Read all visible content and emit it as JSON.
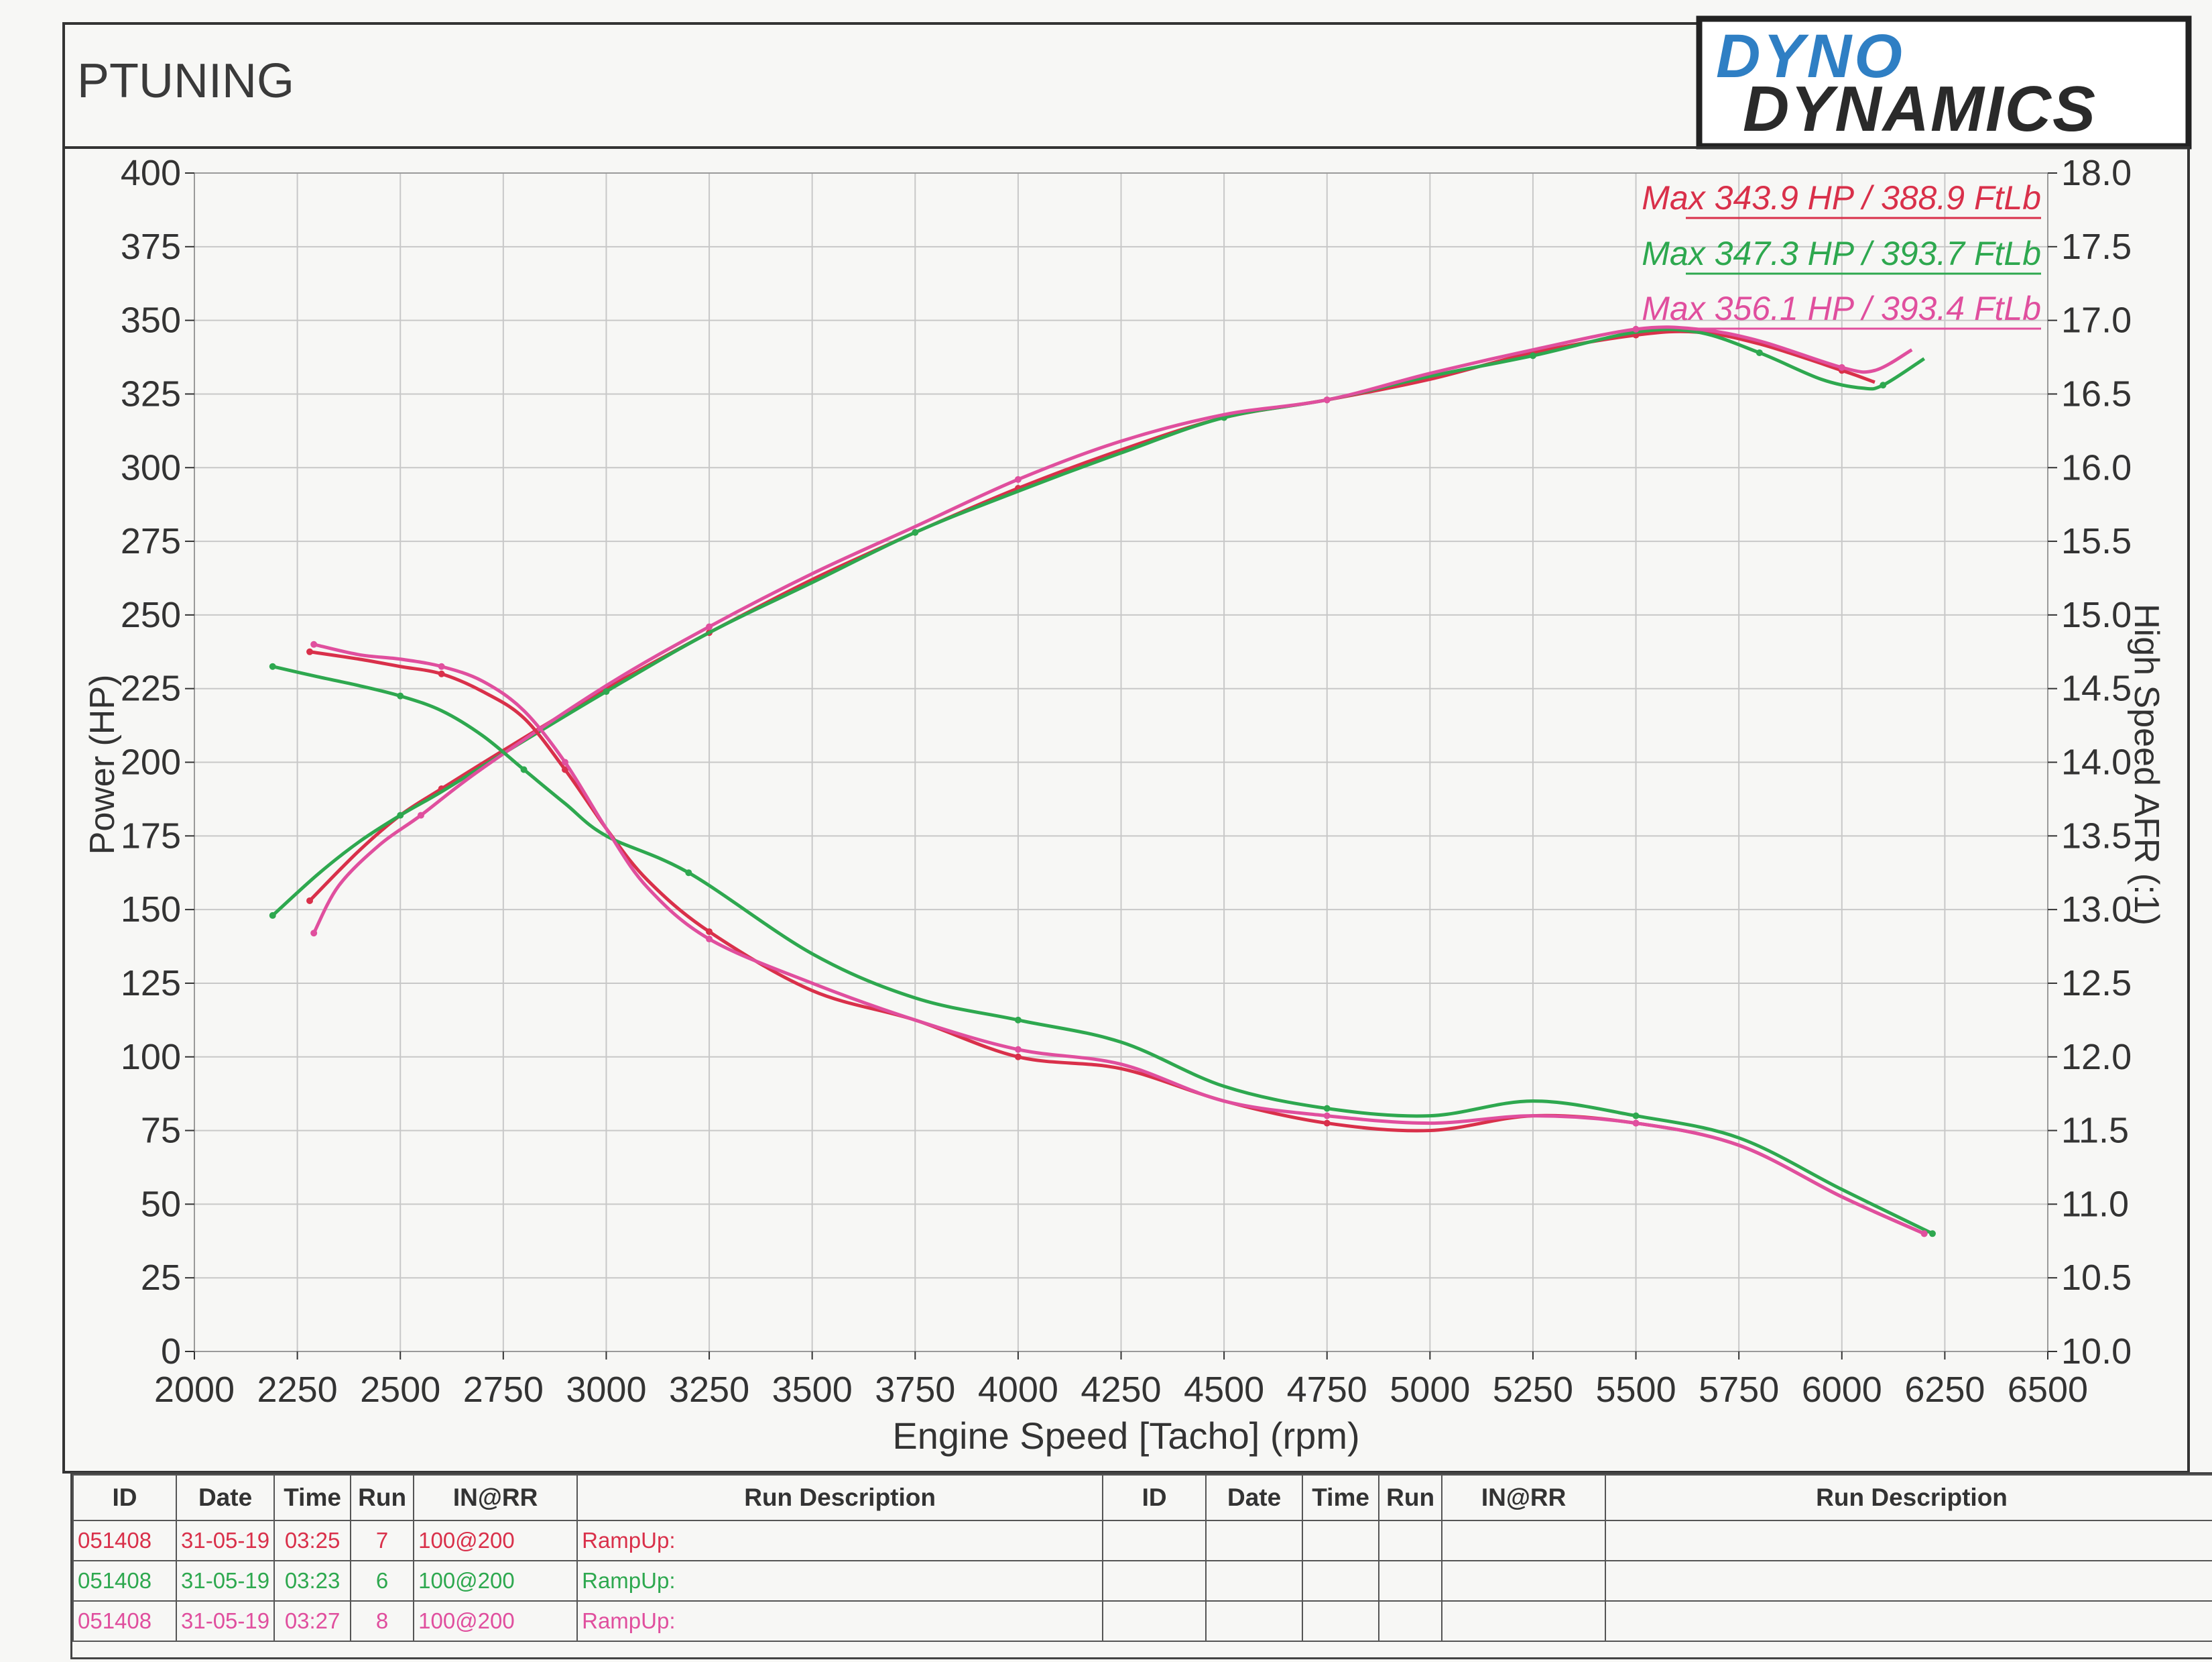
{
  "header": {
    "shop_name": "PTUNING",
    "brand_line1": "DYNO",
    "brand_line2": "DYNAMICS"
  },
  "colors": {
    "run7": "#d9304a",
    "run6": "#2ea84f",
    "run8": "#e04f9e",
    "grid": "#bdbdbd",
    "frame": "#333333"
  },
  "chart_data": {
    "type": "line",
    "xlabel": "Engine Speed [Tacho] (rpm)",
    "ylabel": "Power (HP)",
    "y2label": "High Speed AFR (:1)",
    "xlim": [
      2000,
      6500
    ],
    "ylim": [
      0,
      400
    ],
    "y2lim": [
      10.0,
      18.0
    ],
    "x_ticks": [
      "2000",
      "2250",
      "2500",
      "2750",
      "3000",
      "3250",
      "3500",
      "3750",
      "4000",
      "4250",
      "4500",
      "4750",
      "5000",
      "5250",
      "5500",
      "5750",
      "6000",
      "6250",
      "6500"
    ],
    "y_ticks": [
      "0",
      "25",
      "50",
      "75",
      "100",
      "125",
      "150",
      "175",
      "200",
      "225",
      "250",
      "275",
      "300",
      "325",
      "350",
      "375",
      "400"
    ],
    "y2_ticks": [
      "10.0",
      "10.5",
      "11.0",
      "11.5",
      "12.0",
      "12.5",
      "13.0",
      "13.5",
      "14.0",
      "14.5",
      "15.0",
      "15.5",
      "16.0",
      "16.5",
      "17.0",
      "17.5",
      "18.0"
    ],
    "grid": true,
    "legend_placement": "top-right",
    "legend": [
      "Max 343.9 HP  / 388.9 FtLb",
      "Max 347.3 HP  / 393.7 FtLb",
      "Max 356.1 HP  / 393.4 FtLb"
    ],
    "series": [
      {
        "run": "7",
        "color": "#d9304a",
        "axis": "power",
        "x": [
          2280,
          2400,
          2500,
          2600,
          2750,
          3000,
          3250,
          3500,
          3750,
          4000,
          4250,
          4500,
          4750,
          5000,
          5250,
          5500,
          5650,
          5800,
          6000,
          6080
        ],
        "values": [
          153,
          170,
          182,
          191,
          204,
          225,
          244,
          262,
          278,
          293,
          306,
          317,
          323,
          330,
          339,
          345,
          346,
          342,
          333,
          329
        ]
      },
      {
        "run": "6",
        "color": "#2ea84f",
        "axis": "power",
        "x": [
          2190,
          2300,
          2400,
          2500,
          2600,
          2750,
          3000,
          3250,
          3500,
          3750,
          4000,
          4250,
          4500,
          4750,
          5000,
          5250,
          5500,
          5650,
          5800,
          5950,
          6050,
          6100,
          6200
        ],
        "values": [
          148,
          162,
          173,
          182,
          190,
          203,
          224,
          244,
          261,
          278,
          292,
          305,
          317,
          323,
          331,
          338,
          346,
          346,
          339,
          330,
          327,
          328,
          337
        ]
      },
      {
        "run": "8",
        "color": "#e04f9e",
        "axis": "power",
        "x": [
          2290,
          2350,
          2450,
          2550,
          2700,
          3000,
          3250,
          3500,
          3750,
          4000,
          4250,
          4500,
          4750,
          5000,
          5250,
          5500,
          5650,
          5800,
          6000,
          6080,
          6170
        ],
        "values": [
          142,
          158,
          172,
          182,
          198,
          226,
          246,
          264,
          280,
          296,
          309,
          318,
          323,
          332,
          340,
          347,
          347,
          343,
          334,
          333,
          340
        ]
      },
      {
        "run": "7",
        "color": "#d9304a",
        "axis": "afr",
        "x": [
          2280,
          2400,
          2500,
          2600,
          2700,
          2800,
          2900,
          3000,
          3100,
          3250,
          3500,
          3750,
          4000,
          4250,
          4500,
          4750,
          5000,
          5250,
          5500,
          5750,
          6000,
          6200
        ],
        "values": [
          14.75,
          14.7,
          14.65,
          14.6,
          14.48,
          14.3,
          13.95,
          13.55,
          13.2,
          12.85,
          12.45,
          12.25,
          12.0,
          11.92,
          11.7,
          11.55,
          11.5,
          11.6,
          11.55,
          11.4,
          11.05,
          10.8
        ]
      },
      {
        "run": "6",
        "color": "#2ea84f",
        "axis": "afr",
        "x": [
          2190,
          2300,
          2400,
          2500,
          2600,
          2700,
          2800,
          2900,
          3000,
          3200,
          3500,
          3750,
          4000,
          4250,
          4500,
          4750,
          5000,
          5250,
          5500,
          5750,
          6000,
          6220
        ],
        "values": [
          14.65,
          14.58,
          14.52,
          14.45,
          14.35,
          14.18,
          13.95,
          13.72,
          13.5,
          13.25,
          12.7,
          12.4,
          12.25,
          12.1,
          11.8,
          11.65,
          11.6,
          11.7,
          11.6,
          11.45,
          11.1,
          10.8
        ]
      },
      {
        "run": "8",
        "color": "#e04f9e",
        "axis": "afr",
        "x": [
          2290,
          2400,
          2500,
          2600,
          2700,
          2800,
          2900,
          3000,
          3100,
          3250,
          3500,
          3750,
          4000,
          4250,
          4500,
          4750,
          5000,
          5250,
          5500,
          5750,
          6000,
          6200
        ],
        "values": [
          14.8,
          14.73,
          14.7,
          14.65,
          14.55,
          14.35,
          14.0,
          13.55,
          13.15,
          12.8,
          12.5,
          12.25,
          12.05,
          11.95,
          11.7,
          11.6,
          11.55,
          11.6,
          11.55,
          11.4,
          11.05,
          10.8
        ]
      }
    ]
  },
  "table": {
    "headers": [
      "ID",
      "Date",
      "Time",
      "Run",
      "IN@RR",
      "Run Description",
      "ID",
      "Date",
      "Time",
      "Run",
      "IN@RR",
      "Run Description"
    ],
    "rows": [
      [
        "051408",
        "31-05-19",
        "03:25",
        "7",
        "100@200",
        "RampUp:"
      ],
      [
        "051408",
        "31-05-19",
        "03:23",
        "6",
        "100@200",
        "RampUp:"
      ],
      [
        "051408",
        "31-05-19",
        "03:27",
        "8",
        "100@200",
        "RampUp:"
      ]
    ]
  }
}
